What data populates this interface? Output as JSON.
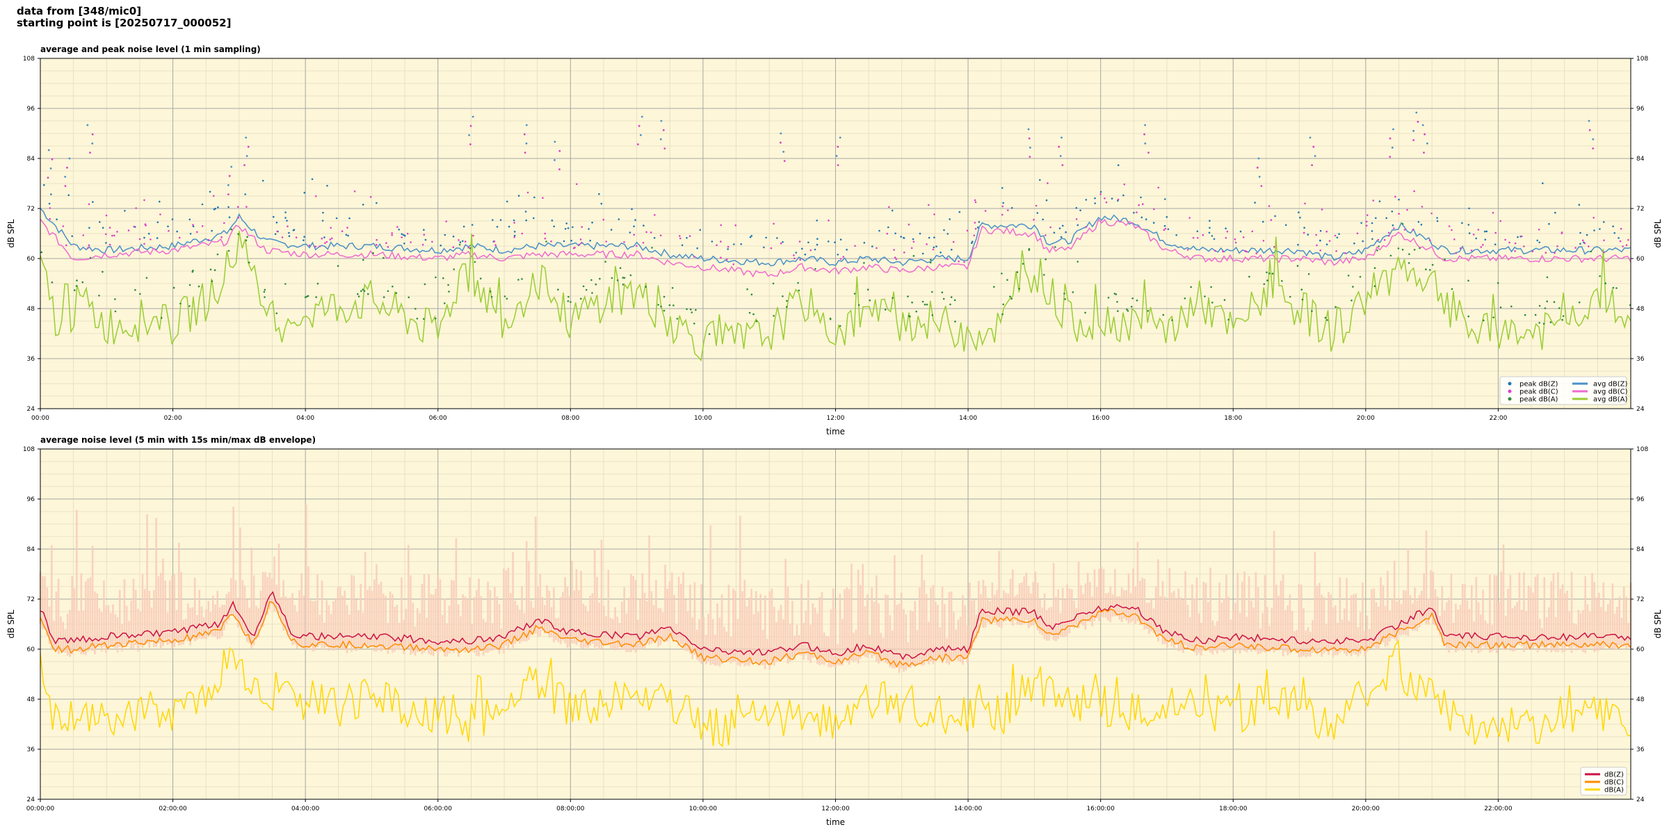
{
  "header": {
    "line1": "data from [348/mic0]",
    "line2": "starting point is [20250717_000052]"
  },
  "chart_data": [
    {
      "type": "line",
      "title": "average and peak noise level (1 min sampling)",
      "xlabel": "time",
      "ylabel": "dB SPL",
      "ylabel_right": "dB SPL",
      "ylim": [
        24,
        108
      ],
      "yticks": [
        24,
        36,
        48,
        60,
        72,
        84,
        96,
        108
      ],
      "xlim_hours": [
        0,
        24
      ],
      "xtick_labels": [
        "00:00",
        "02:00",
        "04:00",
        "06:00",
        "08:00",
        "10:00",
        "12:00",
        "14:00",
        "16:00",
        "18:00",
        "20:00",
        "22:00"
      ],
      "grid": true,
      "background": "#fdf6d8",
      "legend_position": "lower-right",
      "legend": [
        {
          "label": "peak dB(Z)",
          "kind": "dot",
          "color": "#1f77b4"
        },
        {
          "label": "peak dB(C)",
          "kind": "dot",
          "color": "#e040c8"
        },
        {
          "label": "peak dB(A)",
          "kind": "dot",
          "color": "#2e8b3a"
        },
        {
          "label": "avg dB(Z)",
          "kind": "line",
          "color": "#4a90c8"
        },
        {
          "label": "avg dB(C)",
          "kind": "line",
          "color": "#f06ad0"
        },
        {
          "label": "avg dB(A)",
          "kind": "line",
          "color": "#9acd32"
        }
      ],
      "series": [
        {
          "name": "avg dB(Z)",
          "color": "#4a90c8",
          "x": [
            0,
            0.5,
            1,
            2,
            2.8,
            3,
            3.4,
            4,
            5,
            6,
            6.5,
            7,
            7.5,
            8,
            9,
            9.5,
            10,
            11,
            11.5,
            12,
            12.5,
            13,
            13.5,
            14,
            14.2,
            15,
            15.2,
            15.5,
            16,
            16.5,
            17,
            17.5,
            18,
            19,
            19.5,
            20,
            20.5,
            21,
            21.2,
            22,
            23,
            24
          ],
          "y": [
            72,
            63,
            62,
            63,
            66,
            70,
            64,
            63,
            63,
            62,
            63,
            62,
            63,
            63,
            63,
            61,
            60,
            59,
            60,
            59,
            60,
            59,
            60,
            60,
            68,
            68,
            64,
            64,
            70,
            69,
            64,
            62,
            62,
            62,
            60,
            62,
            68,
            64,
            62,
            62,
            62,
            62
          ]
        },
        {
          "name": "avg dB(C)",
          "color": "#f06ad0",
          "x": [
            0,
            0.5,
            1,
            2,
            2.8,
            3,
            3.4,
            4,
            5,
            6,
            6.5,
            7,
            7.5,
            8,
            9,
            9.5,
            10,
            11,
            11.5,
            12,
            12.5,
            13,
            13.5,
            14,
            14.2,
            15,
            15.2,
            15.5,
            16,
            16.5,
            17,
            17.5,
            18,
            19,
            19.5,
            20,
            20.5,
            21,
            21.2,
            22,
            23,
            24
          ],
          "y": [
            69,
            60,
            61,
            62,
            64,
            68,
            62,
            61,
            61,
            60,
            61,
            60,
            61,
            61,
            61,
            59,
            58,
            56,
            58,
            57,
            58,
            57,
            58,
            58,
            67,
            66,
            62,
            62,
            69,
            68,
            62,
            60,
            60,
            60,
            59,
            60,
            66,
            62,
            60,
            60,
            60,
            60
          ]
        },
        {
          "name": "avg dB(A)",
          "color": "#9acd32",
          "x": [
            0,
            0.3,
            0.6,
            1,
            1.5,
            2,
            2.5,
            3,
            3.5,
            4,
            5,
            6,
            6.4,
            7,
            7.5,
            8,
            8.5,
            9,
            9.5,
            10,
            10.5,
            11,
            11.5,
            12,
            12.5,
            13,
            13.5,
            14,
            14.5,
            15,
            15.5,
            16,
            16.5,
            17,
            17.5,
            18,
            18.5,
            19,
            19.5,
            20,
            20.5,
            21,
            21.5,
            22,
            22.5,
            23,
            23.5,
            24
          ],
          "y": [
            58,
            42,
            50,
            44,
            45,
            44,
            50,
            62,
            44,
            47,
            50,
            42,
            58,
            45,
            55,
            45,
            50,
            52,
            45,
            40,
            40,
            42,
            50,
            42,
            47,
            45,
            45,
            42,
            44,
            58,
            45,
            45,
            45,
            42,
            50,
            42,
            52,
            48,
            42,
            50,
            58,
            55,
            43,
            42,
            42,
            44,
            52,
            43
          ]
        }
      ],
      "peak_clusters": [
        {
          "x": 0.15,
          "y": 86
        },
        {
          "x": 0.4,
          "y": 84
        },
        {
          "x": 0.75,
          "y": 92
        },
        {
          "x": 2.85,
          "y": 82
        },
        {
          "x": 3.1,
          "y": 89
        },
        {
          "x": 6.5,
          "y": 94
        },
        {
          "x": 7.3,
          "y": 92
        },
        {
          "x": 7.8,
          "y": 88
        },
        {
          "x": 9.05,
          "y": 94
        },
        {
          "x": 9.4,
          "y": 93
        },
        {
          "x": 11.2,
          "y": 90
        },
        {
          "x": 12.05,
          "y": 89
        },
        {
          "x": 14.95,
          "y": 91
        },
        {
          "x": 15.4,
          "y": 89
        },
        {
          "x": 16.7,
          "y": 92
        },
        {
          "x": 18.4,
          "y": 84
        },
        {
          "x": 19.2,
          "y": 89
        },
        {
          "x": 20.4,
          "y": 91
        },
        {
          "x": 20.75,
          "y": 95
        },
        {
          "x": 20.9,
          "y": 92
        },
        {
          "x": 23.4,
          "y": 93
        }
      ]
    },
    {
      "type": "line",
      "title": "average noise level (5 min with 15s min/max dB envelope)",
      "xlabel": "time",
      "ylabel": "dB SPL",
      "ylabel_right": "dB SPL",
      "ylim": [
        24,
        108
      ],
      "yticks": [
        24,
        36,
        48,
        60,
        72,
        84,
        96,
        108
      ],
      "xlim_hours": [
        0,
        24
      ],
      "xtick_labels": [
        "00:00:00",
        "02:00:00",
        "04:00:00",
        "06:00:00",
        "08:00:00",
        "10:00:00",
        "12:00:00",
        "14:00:00",
        "16:00:00",
        "18:00:00",
        "20:00:00",
        "22:00:00"
      ],
      "grid": true,
      "background": "#fdf6d8",
      "legend_position": "lower-right",
      "legend": [
        {
          "label": "dB(Z)",
          "kind": "line",
          "color": "#cc1144"
        },
        {
          "label": "dB(C)",
          "kind": "line",
          "color": "#ff8c00"
        },
        {
          "label": "dB(A)",
          "kind": "line",
          "color": "#ffd700"
        }
      ],
      "envelope_color": "#f8cbb8",
      "series": [
        {
          "name": "dB(Z)",
          "color": "#cc1144",
          "x": [
            0,
            0.2,
            0.5,
            1,
            2,
            2.7,
            2.9,
            3.2,
            3.5,
            3.8,
            4,
            5,
            6,
            6.5,
            7,
            7.5,
            8,
            9,
            9.5,
            10,
            11,
            11.5,
            12,
            12.5,
            13,
            13.5,
            14,
            14.2,
            15,
            15.2,
            15.5,
            16,
            16.5,
            17,
            17.5,
            18,
            19,
            19.5,
            20,
            20.5,
            21,
            21.2,
            22,
            23,
            24
          ],
          "y": [
            70,
            62,
            62,
            63,
            64,
            66,
            71,
            63,
            74,
            64,
            63,
            63,
            62,
            62,
            63,
            67,
            64,
            63,
            65,
            60,
            59,
            61,
            59,
            61,
            58,
            60,
            60,
            69,
            69,
            65,
            67,
            70,
            70,
            64,
            62,
            63,
            62,
            62,
            62,
            66,
            70,
            63,
            63,
            63,
            63
          ]
        },
        {
          "name": "dB(C)",
          "color": "#ff8c00",
          "x": [
            0,
            0.2,
            0.5,
            1,
            2,
            2.7,
            2.9,
            3.2,
            3.5,
            3.8,
            4,
            5,
            6,
            6.5,
            7,
            7.5,
            8,
            9,
            9.5,
            10,
            11,
            11.5,
            12,
            12.5,
            13,
            13.5,
            14,
            14.2,
            15,
            15.2,
            15.5,
            16,
            16.5,
            17,
            17.5,
            18,
            19,
            19.5,
            20,
            20.5,
            21,
            21.2,
            22,
            23,
            24
          ],
          "y": [
            67,
            60,
            60,
            61,
            62,
            64,
            69,
            61,
            72,
            62,
            61,
            61,
            60,
            60,
            61,
            65,
            62,
            61,
            63,
            58,
            57,
            59,
            57,
            59,
            56,
            58,
            58,
            67,
            67,
            63,
            65,
            69,
            68,
            62,
            60,
            61,
            60,
            60,
            60,
            64,
            68,
            61,
            61,
            61,
            61
          ]
        },
        {
          "name": "dB(A)",
          "color": "#ffd700",
          "x": [
            0,
            0.2,
            0.5,
            1,
            1.5,
            2,
            2.5,
            2.8,
            3,
            3.5,
            4,
            4.5,
            5,
            5.5,
            6,
            6.5,
            7,
            7.5,
            8,
            8.5,
            9,
            9.5,
            10,
            10.5,
            11,
            11.5,
            12,
            12.5,
            13,
            13.5,
            14,
            14.5,
            15,
            15.5,
            16,
            16.5,
            17,
            17.5,
            18,
            18.5,
            19,
            19.5,
            20,
            20.5,
            21,
            21.5,
            22,
            22.5,
            23,
            23.5,
            24
          ],
          "y": [
            56,
            42,
            43,
            44,
            45,
            45,
            48,
            58,
            54,
            47,
            48,
            46,
            50,
            44,
            44,
            42,
            46,
            52,
            45,
            48,
            50,
            48,
            42,
            41,
            45,
            43,
            42,
            48,
            47,
            45,
            44,
            44,
            52,
            48,
            45,
            45,
            44,
            46,
            44,
            48,
            46,
            42,
            50,
            55,
            48,
            42,
            41,
            42,
            42,
            46,
            42
          ]
        }
      ]
    }
  ]
}
